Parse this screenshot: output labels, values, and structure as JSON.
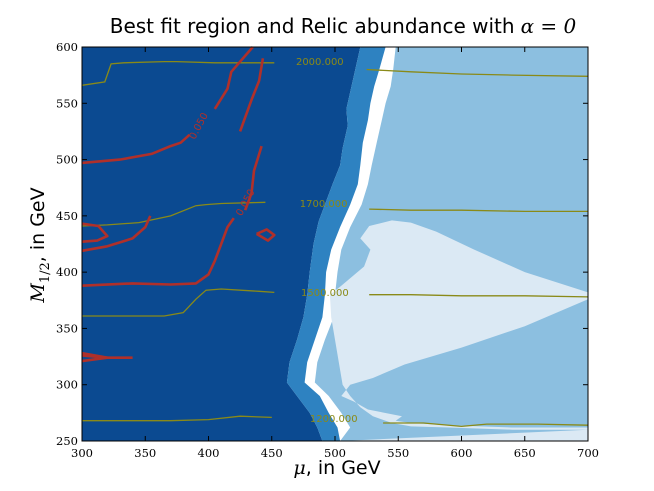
{
  "chart_data": {
    "type": "contour",
    "title": "Best fit region and Relic abundance with α = 0",
    "title_text": "Best fit region and Relic abundance with",
    "title_math": "α = 0",
    "xlabel": "μ, in GeV",
    "xlabel_symbol": "μ",
    "xlabel_text": ", in GeV",
    "ylabel": "M1/2, in GeV",
    "ylabel_symbol": "M",
    "ylabel_sub": "1/2",
    "ylabel_text": ", in GeV",
    "xlim": [
      300,
      700
    ],
    "ylim": [
      250,
      600
    ],
    "xticks": [
      300,
      350,
      400,
      450,
      500,
      550,
      600,
      650,
      700
    ],
    "yticks": [
      250,
      300,
      350,
      400,
      450,
      500,
      550,
      600
    ],
    "colors": {
      "region_darkest": "#0b4a91",
      "region_dark": "#2e82c1",
      "region_mid": "#8cbfe0",
      "region_light": "#dbe9f4",
      "olive_contour": "#8a8a18",
      "red_contour": "#b0302a"
    },
    "regions": [
      {
        "level": "darkest",
        "boundary": [
          [
            300,
            250
          ],
          [
            490,
            250
          ],
          [
            486,
            262
          ],
          [
            480,
            275
          ],
          [
            470,
            290
          ],
          [
            462,
            302
          ],
          [
            464,
            320
          ],
          [
            470,
            340
          ],
          [
            475,
            360
          ],
          [
            478,
            380
          ],
          [
            480,
            400
          ],
          [
            483,
            425
          ],
          [
            487,
            445
          ],
          [
            492,
            460
          ],
          [
            498,
            478
          ],
          [
            504,
            495
          ],
          [
            506,
            510
          ],
          [
            510,
            530
          ],
          [
            509,
            545
          ],
          [
            512,
            560
          ],
          [
            515,
            575
          ],
          [
            518,
            590
          ],
          [
            520,
            600
          ],
          [
            300,
            600
          ]
        ]
      },
      {
        "level": "dark",
        "boundary": [
          [
            490,
            250
          ],
          [
            504,
            250
          ],
          [
            502,
            262
          ],
          [
            495,
            275
          ],
          [
            488,
            290
          ],
          [
            476,
            302
          ],
          [
            478,
            320
          ],
          [
            484,
            340
          ],
          [
            490,
            360
          ],
          [
            492,
            380
          ],
          [
            493,
            400
          ],
          [
            497,
            420
          ],
          [
            504,
            440
          ],
          [
            512,
            460
          ],
          [
            518,
            478
          ],
          [
            520,
            495
          ],
          [
            522,
            515
          ],
          [
            526,
            535
          ],
          [
            528,
            550
          ],
          [
            531,
            565
          ],
          [
            535,
            580
          ],
          [
            540,
            600
          ],
          [
            520,
            600
          ],
          [
            518,
            590
          ],
          [
            515,
            575
          ],
          [
            512,
            560
          ],
          [
            509,
            545
          ],
          [
            510,
            530
          ],
          [
            506,
            510
          ],
          [
            504,
            495
          ],
          [
            498,
            478
          ],
          [
            492,
            460
          ],
          [
            487,
            445
          ],
          [
            483,
            425
          ],
          [
            480,
            400
          ],
          [
            478,
            380
          ],
          [
            475,
            360
          ],
          [
            470,
            340
          ],
          [
            464,
            320
          ],
          [
            462,
            302
          ],
          [
            470,
            290
          ],
          [
            480,
            275
          ],
          [
            486,
            262
          ]
        ]
      },
      {
        "level": "mid",
        "boundary": [
          [
            504,
            250
          ],
          [
            700,
            250
          ],
          [
            700,
            600
          ],
          [
            548,
            600
          ],
          [
            546,
            580
          ],
          [
            544,
            565
          ],
          [
            540,
            550
          ],
          [
            537,
            535
          ],
          [
            533,
            515
          ],
          [
            529,
            495
          ],
          [
            526,
            478
          ],
          [
            521,
            460
          ],
          [
            512,
            440
          ],
          [
            505,
            420
          ],
          [
            502,
            400
          ],
          [
            500,
            380
          ],
          [
            499,
            360
          ],
          [
            492,
            340
          ],
          [
            486,
            320
          ],
          [
            484,
            302
          ],
          [
            495,
            290
          ],
          [
            505,
            275
          ],
          [
            512,
            262
          ]
        ]
      },
      {
        "level": "light",
        "boundary": [
          [
            505,
            250
          ],
          [
            700,
            250
          ],
          [
            700,
            262
          ],
          [
            640,
            262
          ],
          [
            590,
            264
          ],
          [
            560,
            266
          ],
          [
            548,
            268
          ],
          [
            553,
            272
          ],
          [
            526,
            278
          ],
          [
            515,
            285
          ],
          [
            505,
            290
          ],
          [
            512,
            300
          ],
          [
            530,
            306
          ],
          [
            555,
            318
          ],
          [
            600,
            333
          ],
          [
            650,
            352
          ],
          [
            700,
            376
          ],
          [
            700,
            382
          ],
          [
            650,
            400
          ],
          [
            610,
            420
          ],
          [
            580,
            436
          ],
          [
            560,
            444
          ],
          [
            545,
            446
          ],
          [
            527,
            441
          ],
          [
            520,
            430
          ],
          [
            528,
            420
          ],
          [
            523,
            405
          ],
          [
            505,
            388
          ],
          [
            496,
            380
          ],
          [
            497,
            360
          ],
          [
            500,
            340
          ],
          [
            503,
            320
          ],
          [
            506,
            300
          ],
          [
            512,
            290
          ],
          [
            520,
            280
          ],
          [
            530,
            272
          ],
          [
            545,
            266
          ],
          [
            560,
            263
          ],
          [
            590,
            262
          ],
          [
            640,
            260
          ],
          [
            700,
            260
          ]
        ]
      }
    ],
    "olive_contours": [
      {
        "label": "2000.000",
        "points": [
          [
            300,
            566
          ],
          [
            318,
            569
          ],
          [
            323,
            585
          ],
          [
            333,
            586
          ],
          [
            365,
            587
          ],
          [
            375,
            587
          ],
          [
            405,
            586
          ],
          [
            427,
            586
          ],
          [
            452,
            586
          ]
        ]
      },
      {
        "label": "2000.000",
        "points": [
          [
            525,
            580
          ],
          [
            560,
            578
          ],
          [
            600,
            576
          ],
          [
            640,
            575
          ],
          [
            700,
            574
          ]
        ]
      },
      {
        "label": "1700.000",
        "points": [
          [
            300,
            441
          ],
          [
            320,
            442
          ],
          [
            345,
            444
          ],
          [
            370,
            450
          ],
          [
            390,
            459
          ],
          [
            398,
            460
          ],
          [
            410,
            461
          ],
          [
            445,
            462
          ]
        ]
      },
      {
        "label": "1700.000",
        "points": [
          [
            527,
            456
          ],
          [
            560,
            455
          ],
          [
            600,
            455
          ],
          [
            650,
            454
          ],
          [
            700,
            454
          ]
        ]
      },
      {
        "label": "1500.000",
        "points": [
          [
            300,
            361
          ],
          [
            340,
            361
          ],
          [
            365,
            361
          ],
          [
            380,
            364
          ],
          [
            390,
            376
          ],
          [
            398,
            384
          ],
          [
            410,
            385
          ],
          [
            440,
            383
          ],
          [
            452,
            382
          ]
        ]
      },
      {
        "label": "1500.000",
        "points": [
          [
            527,
            380
          ],
          [
            560,
            380
          ],
          [
            600,
            379
          ],
          [
            650,
            379
          ],
          [
            700,
            378
          ]
        ]
      },
      {
        "label": "1200.000",
        "points": [
          [
            300,
            268
          ],
          [
            330,
            268
          ],
          [
            370,
            268
          ],
          [
            400,
            269
          ],
          [
            425,
            272
          ],
          [
            450,
            271
          ]
        ]
      },
      {
        "label": "1200.000",
        "points": [
          [
            538,
            266
          ],
          [
            570,
            266
          ],
          [
            600,
            263
          ],
          [
            620,
            265
          ],
          [
            660,
            265
          ],
          [
            700,
            264
          ]
        ]
      }
    ],
    "olive_contour_labels": [
      {
        "text": "2000.000",
        "x": 488,
        "y": 587
      },
      {
        "text": "1700.000",
        "x": 491,
        "y": 461
      },
      {
        "text": "1500.000",
        "x": 492,
        "y": 382
      },
      {
        "text": "1200.000",
        "x": 499,
        "y": 270
      }
    ],
    "red_contours": [
      {
        "points": [
          [
            435,
            600
          ],
          [
            418,
            578
          ],
          [
            415,
            563
          ],
          [
            405,
            545
          ]
        ]
      },
      {
        "points": [
          [
            443,
            590
          ],
          [
            440,
            570
          ],
          [
            434,
            553
          ],
          [
            425,
            525
          ]
        ]
      },
      {
        "points": [
          [
            300,
            497
          ],
          [
            330,
            500
          ],
          [
            355,
            505
          ],
          [
            370,
            512
          ],
          [
            378,
            515
          ],
          [
            385,
            522
          ]
        ]
      },
      {
        "points": [
          [
            442,
            512
          ],
          [
            436,
            490
          ],
          [
            434,
            470
          ],
          [
            429,
            455
          ]
        ]
      },
      {
        "points": [
          [
            300,
            443
          ],
          [
            313,
            441
          ],
          [
            320,
            432
          ],
          [
            312,
            428
          ],
          [
            300,
            427
          ]
        ]
      },
      {
        "points": [
          [
            300,
            419
          ],
          [
            320,
            423
          ],
          [
            340,
            430
          ],
          [
            350,
            440
          ],
          [
            354,
            450
          ]
        ]
      },
      {
        "points": [
          [
            300,
            388
          ],
          [
            340,
            390
          ],
          [
            370,
            389
          ],
          [
            390,
            390
          ],
          [
            400,
            398
          ],
          [
            405,
            410
          ],
          [
            410,
            425
          ],
          [
            415,
            440
          ],
          [
            420,
            448
          ]
        ]
      },
      {
        "points": [
          [
            438,
            434
          ],
          [
            447,
            428
          ],
          [
            452,
            433
          ],
          [
            446,
            438
          ],
          [
            438,
            434
          ]
        ]
      },
      {
        "points": [
          [
            300,
            326
          ],
          [
            320,
            324
          ],
          [
            340,
            324
          ]
        ]
      },
      {
        "points": [
          [
            300,
            321
          ],
          [
            320,
            324
          ],
          [
            300,
            328
          ]
        ]
      }
    ],
    "red_contour_labels": [
      {
        "text": "0.050",
        "x": 392,
        "y": 530,
        "angle": -62
      },
      {
        "text": "0.050",
        "x": 429,
        "y": 462,
        "angle": -62
      }
    ]
  }
}
